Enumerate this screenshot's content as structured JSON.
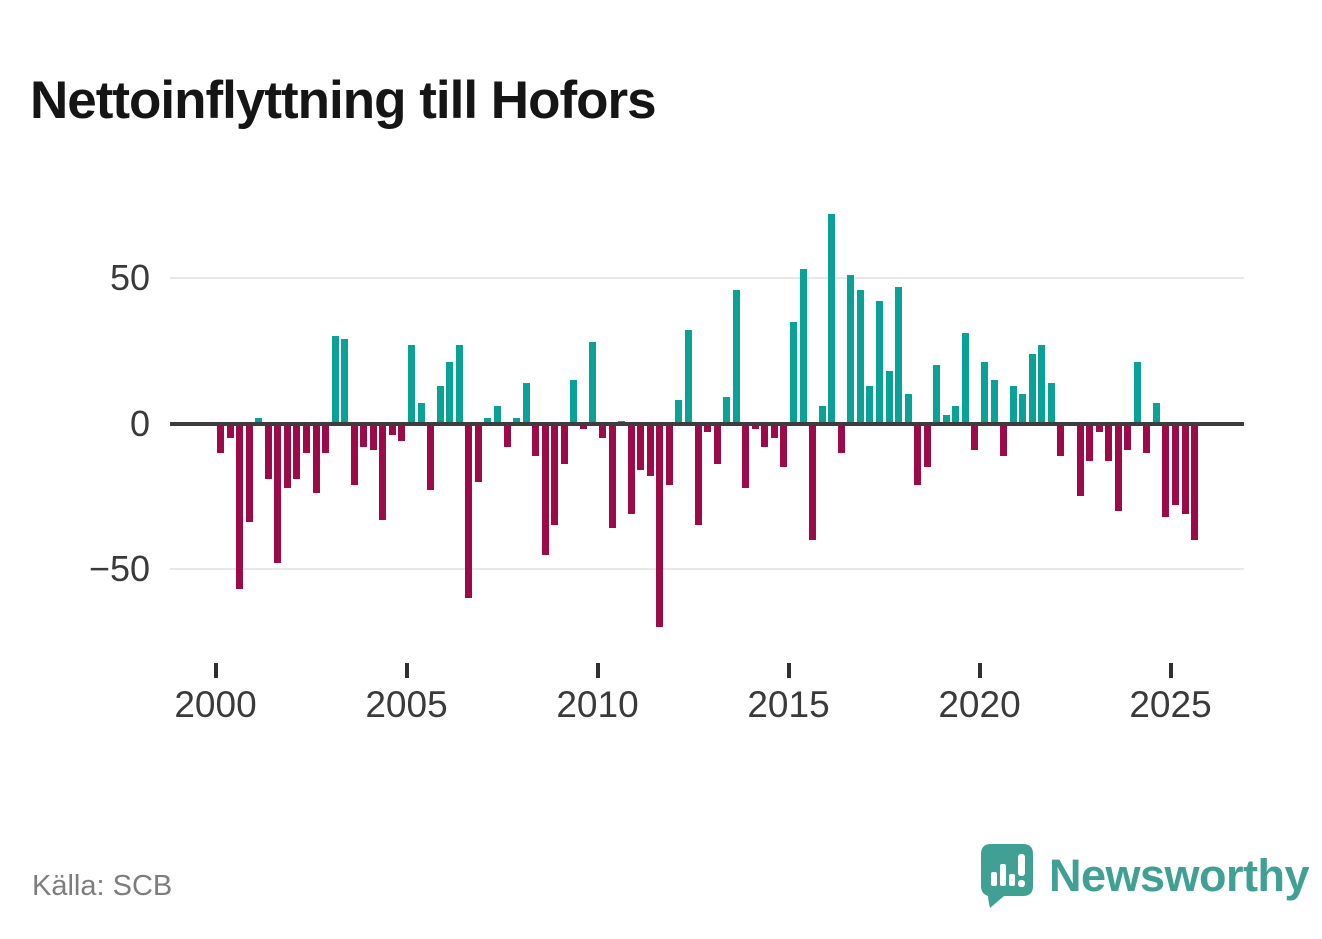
{
  "title": "Nettoinflyttning till Hofors",
  "source": "Källa: SCB",
  "branding": {
    "logo_text": "Newsworthy",
    "logo_icon": "newsworthy-speech-bubble-chart-icon",
    "brand_color": "#3fa093"
  },
  "colors": {
    "positive_bar": "#0aa296",
    "negative_bar": "#9d0a48",
    "zero_axis": "#3d3d3d",
    "gridline": "#e8e8e8",
    "axis_text": "#3a3a3a",
    "title_text": "#151515",
    "source_text": "#7d7d7d"
  },
  "chart_data": {
    "type": "bar",
    "title": "Nettoinflyttning till Hofors",
    "xlabel": "",
    "ylabel": "",
    "x_unit": "quarter",
    "start_year": 2000,
    "start_quarter": 1,
    "end_label": "2025-Q3",
    "legend": "none",
    "grid": "horizontal",
    "ylim": [
      -78,
      82
    ],
    "y_gridlines": [
      50,
      -50
    ],
    "y_ticks": [
      {
        "label": "50",
        "value": 50
      },
      {
        "label": "0",
        "value": 0
      },
      {
        "label": "−50",
        "value": -50
      }
    ],
    "x_ticks": [
      {
        "label": "2000",
        "quarter_index": 0
      },
      {
        "label": "2005",
        "quarter_index": 20
      },
      {
        "label": "2010",
        "quarter_index": 40
      },
      {
        "label": "2015",
        "quarter_index": 60
      },
      {
        "label": "2020",
        "quarter_index": 80
      },
      {
        "label": "2025",
        "quarter_index": 100
      }
    ],
    "series": [
      {
        "name": "Nettoinflyttning",
        "values": [
          -10,
          -5,
          -57,
          -34,
          2,
          -19,
          -48,
          -22,
          -19,
          -10,
          -24,
          -10,
          30,
          29,
          -21,
          -8,
          -9,
          -33,
          -4,
          -6,
          27,
          7,
          -23,
          13,
          21,
          27,
          -60,
          -20,
          2,
          6,
          -8,
          2,
          14,
          -11,
          -45,
          -35,
          -14,
          15,
          -2,
          28,
          -5,
          -36,
          1,
          -31,
          -16,
          -18,
          -70,
          -21,
          8,
          32,
          -35,
          -3,
          -14,
          9,
          46,
          -22,
          -2,
          -8,
          -5,
          -15,
          35,
          53,
          -40,
          6,
          72,
          -10,
          51,
          46,
          13,
          42,
          18,
          47,
          10,
          -21,
          -15,
          20,
          3,
          6,
          31,
          -9,
          21,
          15,
          -11,
          13,
          10,
          24,
          27,
          14,
          -11,
          0,
          -25,
          -13,
          -3,
          -13,
          -30,
          -9,
          21,
          -10,
          7,
          -32,
          -28,
          -31,
          -40
        ]
      }
    ]
  }
}
